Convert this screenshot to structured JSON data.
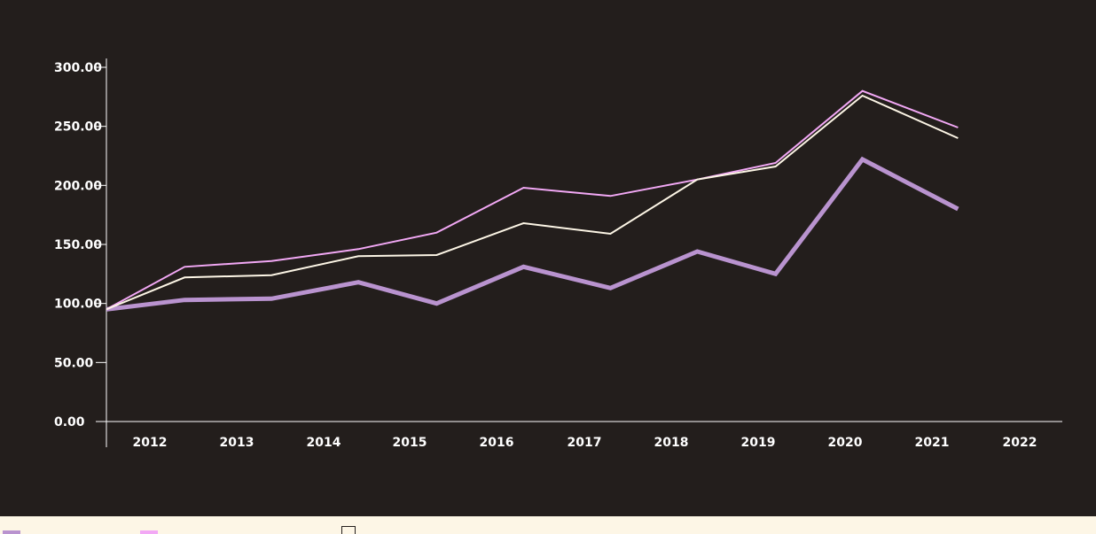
{
  "chart_data": {
    "type": "line",
    "title": "",
    "xlabel": "",
    "ylabel": "",
    "categories": [
      "2012",
      "2013",
      "2014",
      "2015",
      "2016",
      "2017",
      "2018",
      "2019",
      "2020",
      "2021",
      "2022"
    ],
    "ylim": [
      0,
      300
    ],
    "yticks": [
      "0.00",
      "50.00",
      "100.00",
      "150.00",
      "200.00",
      "250.00",
      "300.00"
    ],
    "grid": false,
    "legend": "bottom",
    "series": [
      {
        "color": "#b993cf",
        "points": [
          [
            2012.0,
            95
          ],
          [
            2012.9,
            103
          ],
          [
            2013.9,
            104
          ],
          [
            2014.9,
            118
          ],
          [
            2015.8,
            100
          ],
          [
            2016.8,
            131
          ],
          [
            2017.8,
            113
          ],
          [
            2018.8,
            144
          ],
          [
            2019.7,
            125
          ],
          [
            2020.7,
            222
          ],
          [
            2021.8,
            180
          ]
        ]
      },
      {
        "color": "#f2a8f5",
        "points": [
          [
            2012.0,
            95
          ],
          [
            2012.9,
            131
          ],
          [
            2013.9,
            136
          ],
          [
            2014.9,
            146
          ],
          [
            2015.8,
            160
          ],
          [
            2016.8,
            198
          ],
          [
            2017.8,
            191
          ],
          [
            2018.8,
            205
          ],
          [
            2019.7,
            219
          ],
          [
            2020.7,
            280
          ],
          [
            2021.8,
            249
          ]
        ]
      },
      {
        "color": "#fdf6e6",
        "points": [
          [
            2012.0,
            95
          ],
          [
            2012.9,
            122
          ],
          [
            2013.9,
            124
          ],
          [
            2014.9,
            140
          ],
          [
            2015.8,
            141
          ],
          [
            2016.8,
            168
          ],
          [
            2017.8,
            159
          ],
          [
            2018.8,
            205
          ],
          [
            2019.7,
            216
          ],
          [
            2020.7,
            276
          ],
          [
            2021.8,
            240
          ]
        ]
      }
    ]
  },
  "legend": {
    "items": [
      {
        "color": "#b993cf"
      },
      {
        "color": "#f2a8f5"
      },
      {
        "color": "#fdf6e6",
        "border": "#231e1c"
      }
    ]
  }
}
